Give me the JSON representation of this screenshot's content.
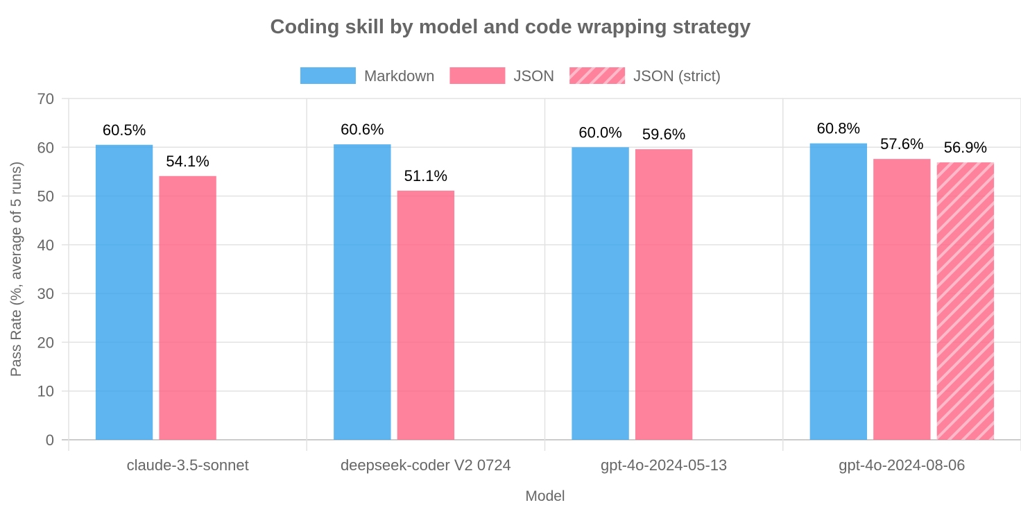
{
  "chart_data": {
    "type": "bar",
    "title": "Coding skill by model and code wrapping strategy",
    "xlabel": "Model",
    "ylabel": "Pass Rate (%, average of 5 runs)",
    "ylim": [
      0,
      70
    ],
    "ytick_step": 10,
    "grid": true,
    "legend_position": "top-center",
    "categories": [
      "claude-3.5-sonnet",
      "deepseek-coder V2 0724",
      "gpt-4o-2024-05-13",
      "gpt-4o-2024-08-06"
    ],
    "series": [
      {
        "name": "Markdown",
        "color": "#36a2eb",
        "pattern": "none",
        "values": [
          60.5,
          60.6,
          60.0,
          60.8
        ],
        "labels": [
          "60.5%",
          "60.6%",
          "60.0%",
          "60.8%"
        ]
      },
      {
        "name": "JSON",
        "color": "#ff6384",
        "pattern": "none",
        "values": [
          54.1,
          51.1,
          59.6,
          57.6
        ],
        "labels": [
          "54.1%",
          "51.1%",
          "59.6%",
          "57.6%"
        ]
      },
      {
        "name": "JSON (strict)",
        "color": "#ff6384",
        "pattern": "diagonal-stripes",
        "values": [
          null,
          null,
          null,
          56.9
        ],
        "labels": [
          null,
          null,
          null,
          "56.9%"
        ]
      }
    ]
  }
}
